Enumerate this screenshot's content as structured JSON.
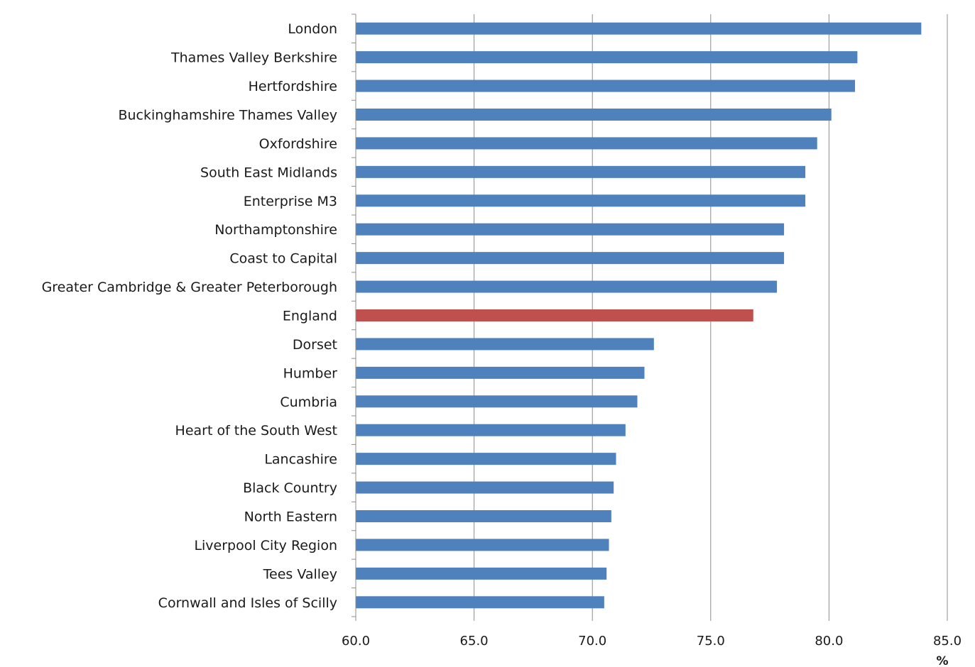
{
  "chart_data": {
    "type": "bar",
    "orientation": "horizontal",
    "title": "",
    "xlabel": "%",
    "ylabel": "",
    "xlim": [
      60,
      85
    ],
    "ticks": [
      "60.0",
      "65.0",
      "70.0",
      "75.0",
      "80.0",
      "85.0"
    ],
    "grid": "vertical",
    "legend": "none",
    "colors": {
      "default": "#4f81bd",
      "highlight": "#c0504d"
    },
    "highlight": "England",
    "categories": [
      "London",
      "Thames Valley Berkshire",
      "Hertfordshire",
      "Buckinghamshire Thames Valley",
      "Oxfordshire",
      "South East Midlands",
      "Enterprise M3",
      "Northamptonshire",
      "Coast to Capital",
      "Greater Cambridge & Greater Peterborough",
      "England",
      "Dorset",
      "Humber",
      "Cumbria",
      "Heart of the South West",
      "Lancashire",
      "Black Country",
      "North Eastern",
      "Liverpool City Region",
      "Tees Valley",
      "Cornwall and Isles of Scilly"
    ],
    "values": [
      83.9,
      81.2,
      81.1,
      80.1,
      79.5,
      79.0,
      79.0,
      78.1,
      78.1,
      77.8,
      76.8,
      72.6,
      72.2,
      71.9,
      71.4,
      71.0,
      70.9,
      70.8,
      70.7,
      70.6,
      70.5
    ]
  }
}
